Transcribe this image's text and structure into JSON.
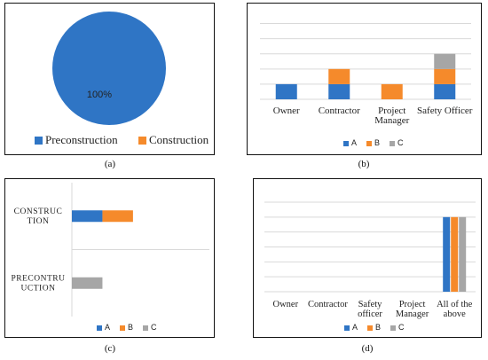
{
  "colors": {
    "A": "#2F75C5",
    "B": "#F58A2B",
    "C": "#A6A6A6",
    "preconstruction": "#2F75C5",
    "construction": "#F58A2B"
  },
  "captions": {
    "a": "(a)",
    "b": "(b)",
    "c": "(c)",
    "d": "(d)"
  },
  "chart_data": [
    {
      "panel": "a",
      "type": "pie",
      "categories": [
        "Preconstruction",
        "Construction"
      ],
      "values": [
        100,
        0
      ],
      "data_labels": [
        "100%"
      ],
      "legend": [
        "Preconstruction",
        "Construction"
      ],
      "legend_position": "bottom"
    },
    {
      "panel": "b",
      "type": "bar",
      "stacked": true,
      "categories": [
        "Owner",
        "Contractor",
        "Project Manager",
        "Safety Officer"
      ],
      "series": [
        {
          "name": "A",
          "values": [
            1,
            1,
            0,
            1
          ]
        },
        {
          "name": "B",
          "values": [
            0,
            1,
            1,
            1
          ]
        },
        {
          "name": "C",
          "values": [
            0,
            0,
            0,
            1
          ]
        }
      ],
      "ylim": [
        0,
        5.5
      ],
      "grid": true,
      "legend_position": "bottom"
    },
    {
      "panel": "c",
      "type": "bar",
      "orientation": "horizontal",
      "stacked": true,
      "categories": [
        "CONSTRUCTION",
        "PRECONTRUCTION"
      ],
      "category_lines": [
        [
          "CONSTRUC",
          "TION"
        ],
        [
          "PRECONTRU",
          "UCTION"
        ]
      ],
      "series": [
        {
          "name": "A",
          "values": [
            1,
            0
          ]
        },
        {
          "name": "B",
          "values": [
            1,
            0
          ]
        },
        {
          "name": "C",
          "values": [
            0,
            1
          ]
        }
      ],
      "xlim": [
        0,
        4.5
      ],
      "legend_position": "bottom"
    },
    {
      "panel": "d",
      "type": "bar",
      "categories": [
        "Owner",
        "Contractor",
        "Safety officer",
        "Project Manager",
        "All of the above"
      ],
      "category_lines": [
        [
          "Owner"
        ],
        [
          "Contractor"
        ],
        [
          "Safety",
          "officer"
        ],
        [
          "Project",
          "Manager"
        ],
        [
          "All of the",
          "above"
        ]
      ],
      "series": [
        {
          "name": "A",
          "values": [
            0,
            0,
            0,
            0,
            1
          ]
        },
        {
          "name": "B",
          "values": [
            0,
            0,
            0,
            0,
            1
          ]
        },
        {
          "name": "C",
          "values": [
            0,
            0,
            0,
            0,
            1
          ]
        }
      ],
      "ylim": [
        0,
        1.2
      ],
      "grid": true,
      "legend_position": "bottom"
    }
  ]
}
